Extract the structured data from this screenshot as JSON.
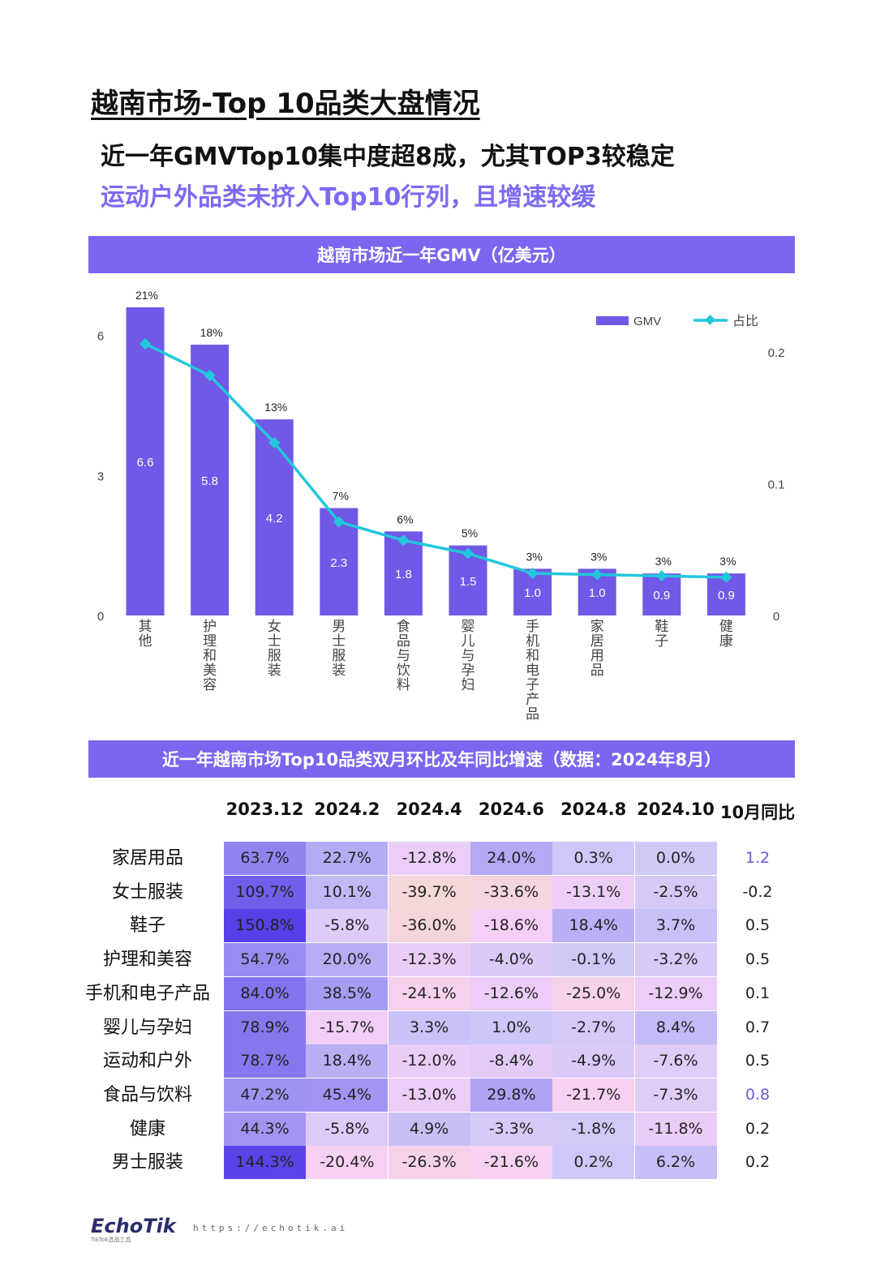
{
  "header": {
    "title": "越南市场-Top 10品类大盘情况",
    "subtitle_line1": "近一年GMVTop10集中度超8成，尤其TOP3较稳定",
    "subtitle_line2": "运动户外品类未挤入Top10行列，且增速较缓"
  },
  "colors": {
    "accent": "#7b66f0",
    "bar": "#7158e6",
    "line": "#22c7dc",
    "yoy_highlight": "#6a5cd6"
  },
  "chart_data": {
    "type": "bar",
    "title": "越南市场近一年GMV（亿美元）",
    "categories": [
      "其他",
      "护理和美容",
      "女士服装",
      "男士服装",
      "食品与饮料",
      "婴儿与孕妇",
      "手机和电子产品",
      "家居用品",
      "鞋子",
      "健康"
    ],
    "series": [
      {
        "name": "GMV",
        "type": "bar",
        "axis": "left",
        "values": [
          6.6,
          5.8,
          4.2,
          2.3,
          1.8,
          1.5,
          1.0,
          1.0,
          0.9,
          0.9
        ],
        "labels": [
          "6.6",
          "5.8",
          "4.2",
          "2.3",
          "1.8",
          "1.5",
          "1.0",
          "1.0",
          "0.9",
          "0.9"
        ]
      },
      {
        "name": "占比",
        "type": "line",
        "axis": "right",
        "values": [
          0.206,
          0.182,
          0.131,
          0.071,
          0.057,
          0.047,
          0.032,
          0.031,
          0.03,
          0.029
        ],
        "labels": [
          "21%",
          "18%",
          "13%",
          "7%",
          "6%",
          "5%",
          "3%",
          "3%",
          "3%",
          "3%"
        ]
      }
    ],
    "y_left": {
      "range": [
        0,
        6.6
      ],
      "ticks": [
        "0",
        "3",
        "6"
      ],
      "tick_values": [
        0,
        3,
        6
      ]
    },
    "y_right": {
      "range": [
        0,
        0.2265
      ],
      "ticks": [
        "0",
        "0.1",
        "0.2"
      ],
      "tick_values": [
        0,
        0.1,
        0.2
      ]
    },
    "legend": {
      "position": "top-right",
      "items": [
        "GMV",
        "占比"
      ]
    },
    "grid": false
  },
  "table": {
    "title": "近一年越南市场Top10品类双月环比及年同比增速（数据：2024年8月）",
    "columns": [
      "2023.12",
      "2024.2",
      "2024.4",
      "2024.6",
      "2024.8",
      "2024.10",
      "10月同比"
    ],
    "rows": [
      {
        "label": "家居用品",
        "values": [
          "63.7%",
          "22.7%",
          "-12.8%",
          "24.0%",
          "0.3%",
          "0.0%"
        ],
        "nums": [
          63.7,
          22.7,
          -12.8,
          24.0,
          0.3,
          0.0
        ],
        "yoy": "1.2",
        "yoy_highlight": true
      },
      {
        "label": "女士服装",
        "values": [
          "109.7%",
          "10.1%",
          "-39.7%",
          "-33.6%",
          "-13.1%",
          "-2.5%"
        ],
        "nums": [
          109.7,
          10.1,
          -39.7,
          -33.6,
          -13.1,
          -2.5
        ],
        "yoy": "-0.2",
        "yoy_highlight": false
      },
      {
        "label": "鞋子",
        "values": [
          "150.8%",
          "-5.8%",
          "-36.0%",
          "-18.6%",
          "18.4%",
          "3.7%"
        ],
        "nums": [
          150.8,
          -5.8,
          -36.0,
          -18.6,
          18.4,
          3.7
        ],
        "yoy": "0.5",
        "yoy_highlight": false
      },
      {
        "label": "护理和美容",
        "values": [
          "54.7%",
          "20.0%",
          "-12.3%",
          "-4.0%",
          "-0.1%",
          "-3.2%"
        ],
        "nums": [
          54.7,
          20.0,
          -12.3,
          -4.0,
          -0.1,
          -3.2
        ],
        "yoy": "0.5",
        "yoy_highlight": false
      },
      {
        "label": "手机和电子产品",
        "values": [
          "84.0%",
          "38.5%",
          "-24.1%",
          "-12.6%",
          "-25.0%",
          "-12.9%"
        ],
        "nums": [
          84.0,
          38.5,
          -24.1,
          -12.6,
          -25.0,
          -12.9
        ],
        "yoy": "0.1",
        "yoy_highlight": false
      },
      {
        "label": "婴儿与孕妇",
        "values": [
          "78.9%",
          "-15.7%",
          "3.3%",
          "1.0%",
          "-2.7%",
          "8.4%"
        ],
        "nums": [
          78.9,
          -15.7,
          3.3,
          1.0,
          -2.7,
          8.4
        ],
        "yoy": "0.7",
        "yoy_highlight": false
      },
      {
        "label": "运动和户外",
        "values": [
          "78.7%",
          "18.4%",
          "-12.0%",
          "-8.4%",
          "-4.9%",
          "-7.6%"
        ],
        "nums": [
          78.7,
          18.4,
          -12.0,
          -8.4,
          -4.9,
          -7.6
        ],
        "yoy": "0.5",
        "yoy_highlight": false
      },
      {
        "label": "食品与饮料",
        "values": [
          "47.2%",
          "45.4%",
          "-13.0%",
          "29.8%",
          "-21.7%",
          "-7.3%"
        ],
        "nums": [
          47.2,
          45.4,
          -13.0,
          29.8,
          -21.7,
          -7.3
        ],
        "yoy": "0.8",
        "yoy_highlight": true
      },
      {
        "label": "健康",
        "values": [
          "44.3%",
          "-5.8%",
          "4.9%",
          "-3.3%",
          "-1.8%",
          "-11.8%"
        ],
        "nums": [
          44.3,
          -5.8,
          4.9,
          -3.3,
          -1.8,
          -11.8
        ],
        "yoy": "0.2",
        "yoy_highlight": false
      },
      {
        "label": "男士服装",
        "values": [
          "144.3%",
          "-20.4%",
          "-26.3%",
          "-21.6%",
          "0.2%",
          "6.2%"
        ],
        "nums": [
          144.3,
          -20.4,
          -26.3,
          -21.6,
          0.2,
          6.2
        ],
        "yoy": "0.2",
        "yoy_highlight": false
      }
    ]
  },
  "footer": {
    "logo": "EchoTik",
    "logo_sub": "TikTok选品工具",
    "url": "https://echotik.ai"
  }
}
